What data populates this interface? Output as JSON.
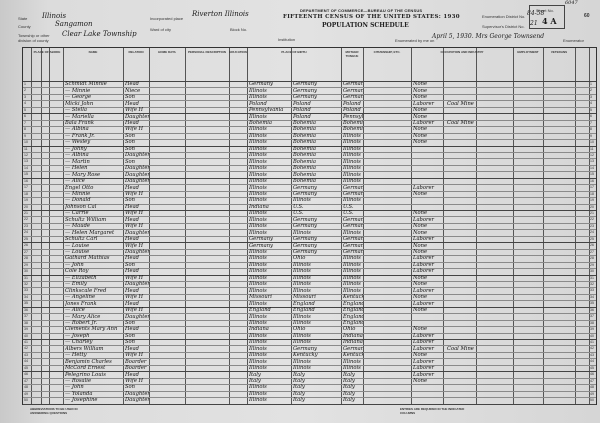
{
  "header": {
    "department_line": "DEPARTMENT OF COMMERCE—BUREAU OF THE CENSUS",
    "census_title": "FIFTEENTH CENSUS OF THE UNITED STATES: 1930",
    "schedule_title": "POPULATION SCHEDULE",
    "state_label": "State",
    "state_value": "Illinois",
    "county_label": "County",
    "county_value": "Sangamon",
    "township_label": "Township or other division of county",
    "township_value": "Clear Lake Township",
    "incorporated_label": "Incorporated place",
    "incorporated_value": "Riverton Illinois",
    "ward_label": "Ward of city",
    "block_label": "Block No.",
    "institution_label": "Institution",
    "enumeration_district_label": "Enumeration District No.",
    "enumeration_district_value": "84-58",
    "supervisor_district_label": "Supervisor's District No.",
    "supervisor_district_value": "21",
    "sheet_label": "Sheet No.",
    "sheet_value": "4 A",
    "page_stamp": "6047",
    "page_number": "60",
    "enumerated_label": "Enumerated by me on",
    "enumerated_value": "April 5, 1930. Mrs George Townsend",
    "enumerator_label": "Enumerator"
  },
  "columns": [
    "PLACE OF ABODE",
    "NAME",
    "RELATION",
    "HOME DATA",
    "PERSONAL DESCRIPTION",
    "EDUCATION",
    "PLACE OF BIRTH",
    "MOTHER TONGUE",
    "CITIZENSHIP, ETC.",
    "OCCUPATION AND INDUSTRY",
    "EMPLOYMENT",
    "VETERANS"
  ],
  "rows": [
    {
      "name": "Schmidt Minnie",
      "relation": "Head",
      "birthplace": "Germany",
      "father": "Germany",
      "mother": "Germany",
      "occupation": "None"
    },
    {
      "name": "— Minnie",
      "relation": "Niece",
      "birthplace": "Illinois",
      "father": "Germany",
      "mother": "Germany",
      "occupation": "None"
    },
    {
      "name": "— George",
      "relation": "Son",
      "birthplace": "Illinois",
      "father": "Germany",
      "mother": "Germany",
      "occupation": "None"
    },
    {
      "name": "Micki John",
      "relation": "Head",
      "birthplace": "Poland",
      "father": "Poland",
      "mother": "Poland",
      "occupation": "Laborer",
      "industry": "Coal Mine"
    },
    {
      "name": "— Stella",
      "relation": "Wife H",
      "birthplace": "Pennsylvania",
      "father": "Poland",
      "mother": "Poland",
      "occupation": "None"
    },
    {
      "name": "— Mariella",
      "relation": "Daughter",
      "birthplace": "Illinois",
      "father": "Poland",
      "mother": "Pennsylvania",
      "occupation": "None"
    },
    {
      "name": "Bala Frank",
      "relation": "Head",
      "birthplace": "Bohemia",
      "father": "Bohemia",
      "mother": "Bohemia",
      "occupation": "Laborer",
      "industry": "Coal Mine"
    },
    {
      "name": "— Albina",
      "relation": "Wife H",
      "birthplace": "Illinois",
      "father": "Bohemia",
      "mother": "Bohemia",
      "occupation": "None"
    },
    {
      "name": "— Frank Jr.",
      "relation": "Son",
      "birthplace": "Illinois",
      "father": "Bohemia",
      "mother": "Illinois",
      "occupation": "None"
    },
    {
      "name": "— Wesley",
      "relation": "Son",
      "birthplace": "Illinois",
      "father": "Bohemia",
      "mother": "Illinois",
      "occupation": "None"
    },
    {
      "name": "— Johny",
      "relation": "Son",
      "birthplace": "Illinois",
      "father": "Bohemia",
      "mother": "Illinois"
    },
    {
      "name": "— Albina",
      "relation": "Daughter",
      "birthplace": "Illinois",
      "father": "Bohemia",
      "mother": "Illinois"
    },
    {
      "name": "— Martin",
      "relation": "Son",
      "birthplace": "Illinois",
      "father": "Bohemia",
      "mother": "Illinois"
    },
    {
      "name": "— Helen",
      "relation": "Daughter",
      "birthplace": "Illinois",
      "father": "Bohemia",
      "mother": "Illinois"
    },
    {
      "name": "— Mary Rose",
      "relation": "Daughter",
      "birthplace": "Illinois",
      "father": "Bohemia",
      "mother": "Illinois"
    },
    {
      "name": "— Alice",
      "relation": "Daughter",
      "birthplace": "Illinois",
      "father": "Bohemia",
      "mother": "Illinois"
    },
    {
      "name": "Engel Otto",
      "relation": "Head",
      "birthplace": "Illinois",
      "father": "Germany",
      "mother": "Germany",
      "occupation": "Laborer"
    },
    {
      "name": "— Minnie",
      "relation": "Wife H",
      "birthplace": "Illinois",
      "father": "Germany",
      "mother": "Germany",
      "occupation": "None"
    },
    {
      "name": "— Donald",
      "relation": "Son",
      "birthplace": "Illinois",
      "father": "Illinois",
      "mother": "Illinois"
    },
    {
      "name": "Johnson Cal",
      "relation": "Head",
      "birthplace": "Indiana",
      "father": "U.S.",
      "mother": "U.S."
    },
    {
      "name": "— Carrie",
      "relation": "Wife H",
      "birthplace": "Illinois",
      "father": "U.S.",
      "mother": "U.S.",
      "occupation": "None"
    },
    {
      "name": "Schultz William",
      "relation": "Head",
      "birthplace": "Illinois",
      "father": "Germany",
      "mother": "Germany",
      "occupation": "Laborer"
    },
    {
      "name": "— Maude",
      "relation": "Wife H",
      "birthplace": "Illinois",
      "father": "Germany",
      "mother": "Germany",
      "occupation": "None"
    },
    {
      "name": "— Helen Margaret",
      "relation": "Daughter",
      "birthplace": "Illinois",
      "father": "Illinois",
      "mother": "Illinois",
      "occupation": "None"
    },
    {
      "name": "Schultz Carl",
      "relation": "Head",
      "birthplace": "Germany",
      "father": "Germany",
      "mother": "Germany",
      "occupation": "Laborer"
    },
    {
      "name": "— Louise",
      "relation": "Wife H",
      "birthplace": "Germany",
      "father": "Germany",
      "mother": "Germany",
      "occupation": "None"
    },
    {
      "name": "— Louise",
      "relation": "Daughter",
      "birthplace": "Illinois",
      "father": "Germany",
      "mother": "Germany",
      "occupation": "None"
    },
    {
      "name": "Gathard Mathias",
      "relation": "Head",
      "birthplace": "Illinois",
      "father": "Ohio",
      "mother": "Illinois",
      "occupation": "Laborer"
    },
    {
      "name": "— John",
      "relation": "Son",
      "birthplace": "Illinois",
      "father": "Illinois",
      "mother": "Illinois",
      "occupation": "Laborer"
    },
    {
      "name": "Cole Roy",
      "relation": "Head",
      "birthplace": "Illinois",
      "father": "Illinois",
      "mother": "Illinois",
      "occupation": "Laborer"
    },
    {
      "name": "— Elizabeth",
      "relation": "Wife H",
      "birthplace": "Illinois",
      "father": "Illinois",
      "mother": "Illinois",
      "occupation": "None"
    },
    {
      "name": "— Emily",
      "relation": "Daughter",
      "birthplace": "Illinois",
      "father": "Illinois",
      "mother": "Illinois",
      "occupation": "None"
    },
    {
      "name": "Clinkscale Fred",
      "relation": "Head",
      "birthplace": "Illinois",
      "father": "Illinois",
      "mother": "Illinois",
      "occupation": "Laborer"
    },
    {
      "name": "— Angeline",
      "relation": "Wife H",
      "birthplace": "Missouri",
      "father": "Missouri",
      "mother": "Kentucky",
      "occupation": "None"
    },
    {
      "name": "Jones Frank",
      "relation": "Head",
      "birthplace": "Illinois",
      "father": "England",
      "mother": "England",
      "occupation": "Laborer"
    },
    {
      "name": "— Alice",
      "relation": "Wife H",
      "birthplace": "England",
      "father": "England",
      "mother": "England",
      "occupation": "None"
    },
    {
      "name": "— Mary Alice",
      "relation": "Daughter",
      "birthplace": "Illinois",
      "father": "Illinois",
      "mother": "England"
    },
    {
      "name": "— Robert Jr.",
      "relation": "Son",
      "birthplace": "Illinois",
      "father": "Illinois",
      "mother": "England"
    },
    {
      "name": "Clements Mary Ann",
      "relation": "Head",
      "birthplace": "Indiana",
      "father": "Ohio",
      "mother": "Ohio",
      "occupation": "None"
    },
    {
      "name": "— Joseph",
      "relation": "Son",
      "birthplace": "Illinois",
      "father": "Illinois",
      "mother": "Indiana",
      "occupation": "Laborer"
    },
    {
      "name": "— Charley",
      "relation": "Son",
      "birthplace": "Illinois",
      "father": "Illinois",
      "mother": "Indiana",
      "occupation": "Laborer"
    },
    {
      "name": "Albers William",
      "relation": "Head",
      "birthplace": "Illinois",
      "father": "Germany",
      "mother": "Germany",
      "occupation": "Laborer",
      "industry": "Coal Mine"
    },
    {
      "name": "— Hetty",
      "relation": "Wife H",
      "birthplace": "Illinois",
      "father": "Kentucky",
      "mother": "Kentucky",
      "occupation": "None"
    },
    {
      "name": "Benjamin Charles",
      "relation": "Boarder",
      "birthplace": "Illinois",
      "father": "Illinois",
      "mother": "Illinois",
      "occupation": "Laborer"
    },
    {
      "name": "McCord Ernest",
      "relation": "Boarder",
      "birthplace": "Illinois",
      "father": "Illinois",
      "mother": "Illinois",
      "occupation": "Laborer"
    },
    {
      "name": "Pelegrino Louis",
      "relation": "Head",
      "birthplace": "Italy",
      "father": "Italy",
      "mother": "Italy",
      "occupation": "Laborer"
    },
    {
      "name": "— Rosalie",
      "relation": "Wife H",
      "birthplace": "Italy",
      "father": "Italy",
      "mother": "Italy",
      "occupation": "None"
    },
    {
      "name": "— John",
      "relation": "Son",
      "birthplace": "Illinois",
      "father": "Italy",
      "mother": "Italy"
    },
    {
      "name": "— Yolanda",
      "relation": "Daughter",
      "birthplace": "Illinois",
      "father": "Italy",
      "mother": "Italy"
    },
    {
      "name": "— Josephine",
      "relation": "Daughter",
      "birthplace": "Illinois",
      "father": "Italy",
      "mother": "Italy"
    }
  ],
  "footer": {
    "abbreviations_title": "ABBREVIATIONS TO BE USED IN ANSWERING QUESTIONS",
    "note": "ENTRIES ARE REQUIRED IN THE INDICATED COLUMNS"
  }
}
